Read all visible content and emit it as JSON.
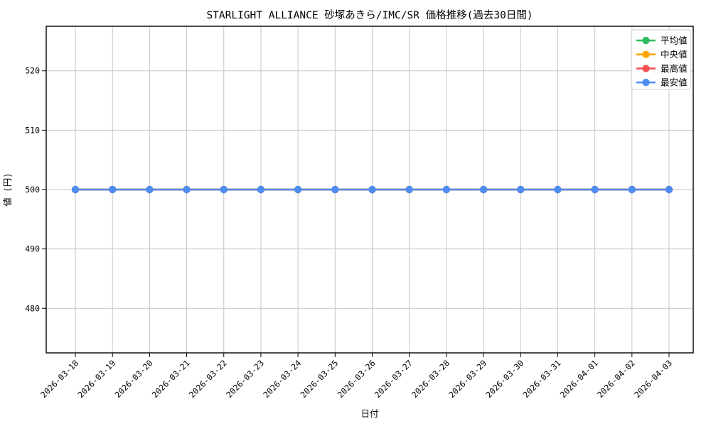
{
  "chart_data": {
    "type": "line",
    "title": "STARLIGHT ALLIANCE 砂塚あきら/IMC/SR 価格推移(過去30日間)",
    "xlabel": "日付",
    "ylabel": "値 (円)",
    "x": [
      "2026-03-18",
      "2026-03-19",
      "2026-03-20",
      "2026-03-21",
      "2026-03-22",
      "2026-03-23",
      "2026-03-24",
      "2026-03-25",
      "2026-03-26",
      "2026-03-27",
      "2026-03-28",
      "2026-03-29",
      "2026-03-30",
      "2026-03-31",
      "2026-04-01",
      "2026-04-02",
      "2026-04-03"
    ],
    "series": [
      {
        "name": "平均値",
        "color": "#2ebc5f",
        "values": [
          500,
          500,
          500,
          500,
          500,
          500,
          500,
          500,
          500,
          500,
          500,
          500,
          500,
          500,
          500,
          500,
          500
        ]
      },
      {
        "name": "中央値",
        "color": "#ffa502",
        "values": [
          500,
          500,
          500,
          500,
          500,
          500,
          500,
          500,
          500,
          500,
          500,
          500,
          500,
          500,
          500,
          500,
          500
        ]
      },
      {
        "name": "最高値",
        "color": "#f25252",
        "values": [
          500,
          500,
          500,
          500,
          500,
          500,
          500,
          500,
          500,
          500,
          500,
          500,
          500,
          500,
          500,
          500,
          500
        ]
      },
      {
        "name": "最安値",
        "color": "#4d8df2",
        "values": [
          500,
          500,
          500,
          500,
          500,
          500,
          500,
          500,
          500,
          500,
          500,
          500,
          500,
          500,
          500,
          500,
          500
        ]
      }
    ],
    "ylim": [
      472.5,
      527.5
    ],
    "yticks": [
      480,
      490,
      500,
      510,
      520
    ],
    "grid": true,
    "grid_color": "#c6c6c6",
    "legend_position": "upper right",
    "legend_border_color": "#cccccc"
  }
}
